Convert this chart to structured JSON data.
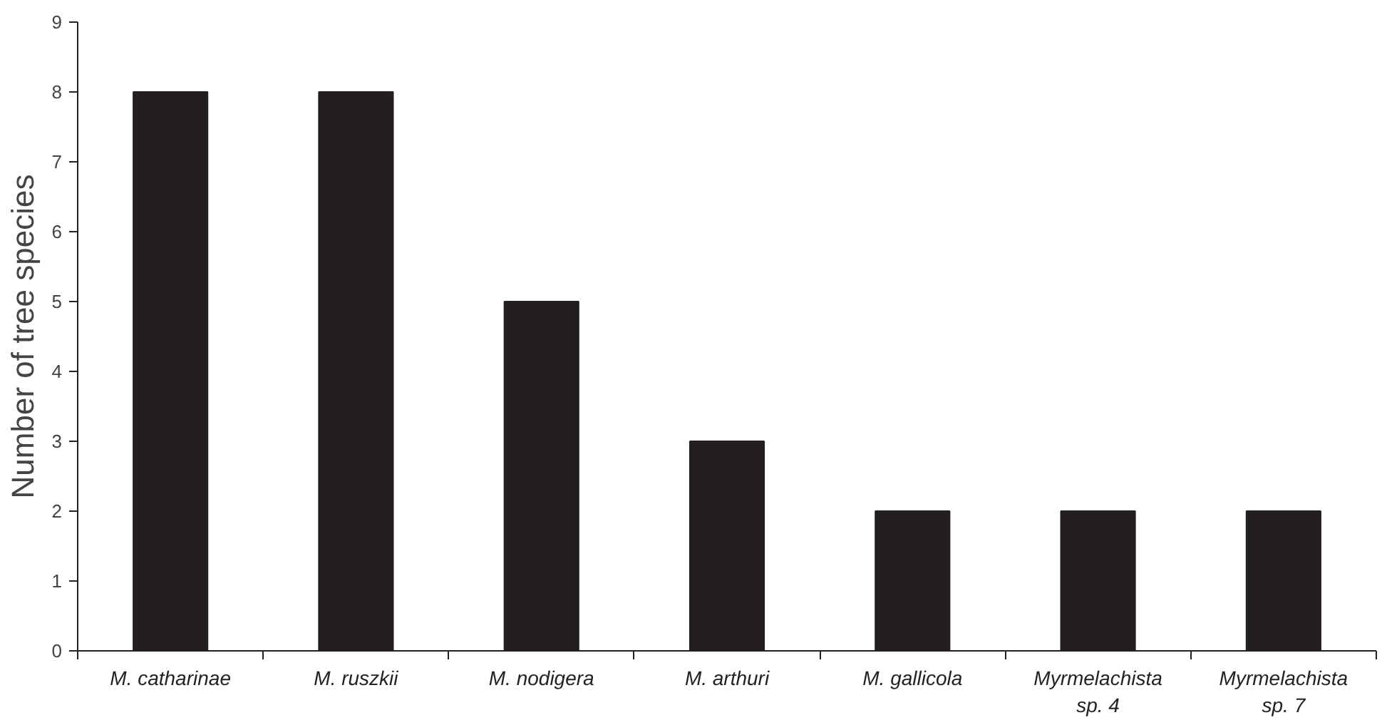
{
  "chart_data": {
    "type": "bar",
    "ylabel": "Number of tree species",
    "categories": [
      "M. catharinae",
      "M. ruszkii",
      "M. nodigera",
      "M. arthuri",
      "M. gallicola",
      "Myrmelachista\nsp. 4",
      "Myrmelachista\nsp. 7"
    ],
    "values": [
      8,
      8,
      5,
      3,
      2,
      2,
      2
    ],
    "color": "#231f20",
    "ylim": [
      0,
      9
    ],
    "yticks": [
      0,
      1,
      2,
      3,
      4,
      5,
      6,
      7,
      8,
      9
    ],
    "grid": false
  }
}
